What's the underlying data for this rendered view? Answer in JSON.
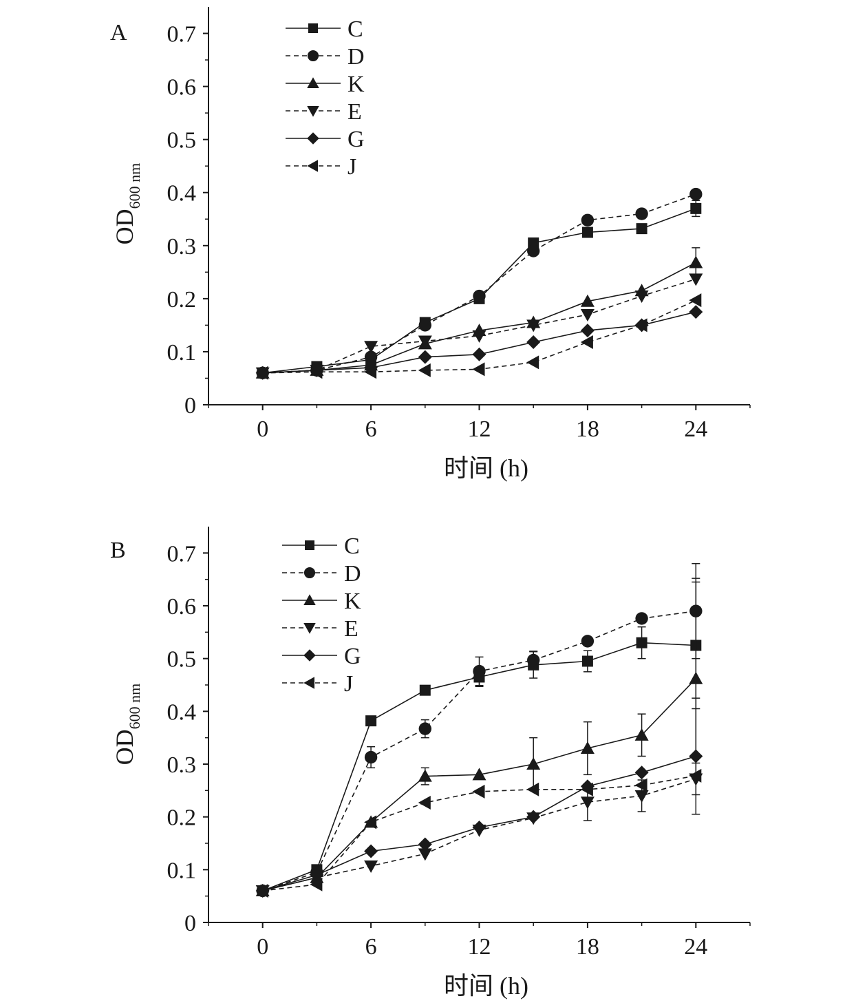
{
  "chart_data": [
    {
      "type": "line",
      "panel_label": "A",
      "xlabel": "时间 (h)",
      "ylabel": "OD",
      "ylabel_subscript": "600 nm",
      "xlim": [
        -3,
        27
      ],
      "ylim": [
        0,
        0.75
      ],
      "xticks": [
        0,
        6,
        12,
        18,
        24
      ],
      "yticks": [
        0,
        0.1,
        0.2,
        0.3,
        0.4,
        0.5,
        0.6,
        0.7
      ],
      "ytick_labels": [
        "0",
        "0.1",
        "0.2",
        "0.3",
        "0.4",
        "0.5",
        "0.6",
        "0.7"
      ],
      "legend_position": "top-left",
      "x": [
        0,
        3,
        6,
        9,
        12,
        15,
        18,
        21,
        24
      ],
      "series": [
        {
          "name": "C",
          "marker": "square",
          "dash": "solid",
          "values": [
            0.06,
            0.072,
            0.085,
            0.155,
            0.2,
            0.305,
            0.325,
            0.332,
            0.37
          ],
          "errors": [
            0,
            0,
            0,
            0,
            0,
            0,
            0,
            0,
            0.015
          ]
        },
        {
          "name": "D",
          "marker": "circle",
          "dash": "dashed",
          "values": [
            0.06,
            0.065,
            0.09,
            0.15,
            0.205,
            0.29,
            0.348,
            0.36,
            0.397
          ],
          "errors": [
            0,
            0,
            0,
            0,
            0,
            0,
            0,
            0,
            0
          ]
        },
        {
          "name": "K",
          "marker": "triangle-up",
          "dash": "solid",
          "values": [
            0.06,
            0.065,
            0.075,
            0.115,
            0.14,
            0.155,
            0.195,
            0.215,
            0.268
          ],
          "errors": [
            0,
            0,
            0,
            0,
            0,
            0,
            0,
            0,
            0.028
          ]
        },
        {
          "name": "E",
          "marker": "triangle-down",
          "dash": "dashed",
          "values": [
            0.06,
            0.065,
            0.11,
            0.12,
            0.13,
            0.15,
            0.17,
            0.205,
            0.237
          ],
          "errors": [
            0,
            0,
            0,
            0,
            0,
            0,
            0,
            0,
            0
          ]
        },
        {
          "name": "G",
          "marker": "diamond",
          "dash": "solid",
          "values": [
            0.06,
            0.065,
            0.07,
            0.09,
            0.095,
            0.118,
            0.14,
            0.15,
            0.175
          ],
          "errors": [
            0,
            0,
            0,
            0,
            0,
            0,
            0,
            0,
            0
          ]
        },
        {
          "name": "J",
          "marker": "triangle-left",
          "dash": "dashed",
          "values": [
            0.06,
            0.062,
            0.062,
            0.065,
            0.067,
            0.08,
            0.118,
            0.15,
            0.197
          ],
          "errors": [
            0,
            0,
            0,
            0,
            0,
            0,
            0,
            0,
            0
          ]
        }
      ]
    },
    {
      "type": "line",
      "panel_label": "B",
      "xlabel": "时间 (h)",
      "ylabel": "OD",
      "ylabel_subscript": "600 nm",
      "xlim": [
        -3,
        27
      ],
      "ylim": [
        0,
        0.75
      ],
      "xticks": [
        0,
        6,
        12,
        18,
        24
      ],
      "yticks": [
        0,
        0.1,
        0.2,
        0.3,
        0.4,
        0.5,
        0.6,
        0.7
      ],
      "ytick_labels": [
        "0",
        "0.1",
        "0.2",
        "0.3",
        "0.4",
        "0.5",
        "0.6",
        "0.7"
      ],
      "legend_position": "top-left",
      "x": [
        0,
        3,
        6,
        9,
        12,
        15,
        18,
        21,
        24
      ],
      "series": [
        {
          "name": "C",
          "marker": "square",
          "dash": "solid",
          "values": [
            0.06,
            0.1,
            0.382,
            0.44,
            0.465,
            0.488,
            0.495,
            0.53,
            0.525
          ],
          "errors": [
            0,
            0,
            0,
            0,
            0.018,
            0.025,
            0.02,
            0.03,
            0.12
          ]
        },
        {
          "name": "D",
          "marker": "circle",
          "dash": "dashed",
          "values": [
            0.06,
            0.095,
            0.313,
            0.367,
            0.476,
            0.497,
            0.533,
            0.576,
            0.59
          ],
          "errors": [
            0,
            0,
            0.02,
            0.017,
            0.027,
            0.017,
            0,
            0,
            0.09
          ]
        },
        {
          "name": "K",
          "marker": "triangle-up",
          "dash": "solid",
          "values": [
            0.06,
            0.085,
            0.19,
            0.277,
            0.28,
            0.3,
            0.33,
            0.355,
            0.462
          ],
          "errors": [
            0,
            0,
            0,
            0.016,
            0,
            0.05,
            0.05,
            0.04,
            0.19
          ]
        },
        {
          "name": "E",
          "marker": "triangle-down",
          "dash": "dashed",
          "values": [
            0.06,
            0.085,
            0.107,
            0.13,
            0.175,
            0.198,
            0.228,
            0.24,
            0.272
          ],
          "errors": [
            0,
            0,
            0,
            0,
            0,
            0,
            0.035,
            0.03,
            0.03
          ]
        },
        {
          "name": "G",
          "marker": "diamond",
          "dash": "solid",
          "values": [
            0.06,
            0.09,
            0.135,
            0.148,
            0.18,
            0.2,
            0.258,
            0.284,
            0.315
          ],
          "errors": [
            0,
            0,
            0,
            0,
            0,
            0,
            0,
            0,
            0.11
          ]
        },
        {
          "name": "J",
          "marker": "triangle-left",
          "dash": "dashed",
          "values": [
            0.06,
            0.072,
            0.19,
            0.227,
            0.248,
            0.252,
            0.252,
            0.26,
            0.278
          ],
          "errors": [
            0,
            0,
            0,
            0,
            0,
            0,
            0,
            0,
            0
          ]
        }
      ]
    }
  ]
}
